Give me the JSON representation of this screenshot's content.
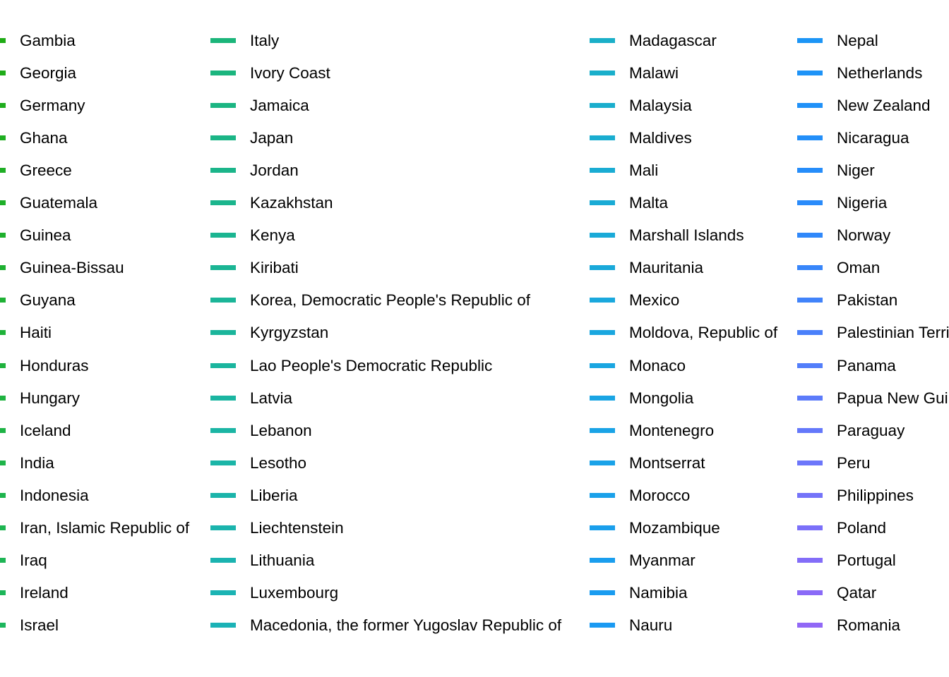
{
  "chart_data": {
    "type": "legend",
    "legend": {
      "columns": [
        {
          "entries": [
            {
              "name": "Gambia",
              "color": "#1fab15"
            },
            {
              "name": "Georgia",
              "color": "#1fac19"
            },
            {
              "name": "Germany",
              "color": "#1fad1d"
            },
            {
              "name": "Ghana",
              "color": "#1fae21"
            },
            {
              "name": "Greece",
              "color": "#1fae25"
            },
            {
              "name": "Guatemala",
              "color": "#1faf29"
            },
            {
              "name": "Guinea",
              "color": "#1fb02d"
            },
            {
              "name": "Guinea-Bissau",
              "color": "#1fb031"
            },
            {
              "name": "Guyana",
              "color": "#1fb135"
            },
            {
              "name": "Haiti",
              "color": "#1fb239"
            },
            {
              "name": "Honduras",
              "color": "#1fb23d"
            },
            {
              "name": "Hungary",
              "color": "#1fb341"
            },
            {
              "name": "Iceland",
              "color": "#1eb345"
            },
            {
              "name": "India",
              "color": "#1eb449"
            },
            {
              "name": "Indonesia",
              "color": "#1eb44d"
            },
            {
              "name": "Iran, Islamic Republic of",
              "color": "#1eb551"
            },
            {
              "name": "Iraq",
              "color": "#1eb555"
            },
            {
              "name": "Ireland",
              "color": "#1db659"
            },
            {
              "name": "Israel",
              "color": "#1db65d"
            }
          ]
        },
        {
          "entries": [
            {
              "name": "Italy",
              "color": "#1bb57a"
            },
            {
              "name": "Ivory Coast",
              "color": "#1bb57e"
            },
            {
              "name": "Jamaica",
              "color": "#1bb582"
            },
            {
              "name": "Japan",
              "color": "#1bb586"
            },
            {
              "name": "Jordan",
              "color": "#1bb58a"
            },
            {
              "name": "Kazakhstan",
              "color": "#1bb58d"
            },
            {
              "name": "Kenya",
              "color": "#1bb591"
            },
            {
              "name": "Kiribati",
              "color": "#1bb594"
            },
            {
              "name": "Korea, Democratic People's Republic of",
              "color": "#1bb598"
            },
            {
              "name": "Kyrgyzstan",
              "color": "#1bb59b"
            },
            {
              "name": "Lao People's Democratic Republic",
              "color": "#1bb59e"
            },
            {
              "name": "Latvia",
              "color": "#1bb5a1"
            },
            {
              "name": "Lebanon",
              "color": "#1bb5a4"
            },
            {
              "name": "Lesotho",
              "color": "#1bb5a7"
            },
            {
              "name": "Liberia",
              "color": "#1bb4aa"
            },
            {
              "name": "Liechtenstein",
              "color": "#1bb4ad"
            },
            {
              "name": "Lithuania",
              "color": "#1bb3b0"
            },
            {
              "name": "Luxembourg",
              "color": "#1bb3b3"
            },
            {
              "name": "Macedonia, the former Yugoslav Republic of",
              "color": "#1bb2b6"
            }
          ]
        },
        {
          "entries": [
            {
              "name": "Madagascar",
              "color": "#1aafc8"
            },
            {
              "name": "Malawi",
              "color": "#1aafcb"
            },
            {
              "name": "Malaysia",
              "color": "#1aaecd"
            },
            {
              "name": "Maldives",
              "color": "#1aadd0"
            },
            {
              "name": "Mali",
              "color": "#1aacd3"
            },
            {
              "name": "Malta",
              "color": "#1aabd5"
            },
            {
              "name": "Marshall Islands",
              "color": "#1aaad8"
            },
            {
              "name": "Mauritania",
              "color": "#1aa9da"
            },
            {
              "name": "Mexico",
              "color": "#1aa8dd"
            },
            {
              "name": "Moldova, Republic of",
              "color": "#1aa7df"
            },
            {
              "name": "Monaco",
              "color": "#1aa6e1"
            },
            {
              "name": "Mongolia",
              "color": "#1aa5e4"
            },
            {
              "name": "Montenegro",
              "color": "#1aa3e6"
            },
            {
              "name": "Montserrat",
              "color": "#1aa2e8"
            },
            {
              "name": "Morocco",
              "color": "#1aa1ea"
            },
            {
              "name": "Mozambique",
              "color": "#1a9fec"
            },
            {
              "name": "Myanmar",
              "color": "#1a9eee"
            },
            {
              "name": "Namibia",
              "color": "#1a9cf0"
            },
            {
              "name": "Nauru",
              "color": "#1a9af2"
            }
          ]
        },
        {
          "entries": [
            {
              "name": "Nepal",
              "color": "#1c95f6"
            },
            {
              "name": "Netherlands",
              "color": "#1e93f7"
            },
            {
              "name": "New Zealand",
              "color": "#2091f8"
            },
            {
              "name": "Nicaragua",
              "color": "#238ff9"
            },
            {
              "name": "Niger",
              "color": "#268dfa"
            },
            {
              "name": "Nigeria",
              "color": "#2a8bfa"
            },
            {
              "name": "Norway",
              "color": "#3088fa"
            },
            {
              "name": "Oman",
              "color": "#3886fa"
            },
            {
              "name": "Pakistan",
              "color": "#4183fa"
            },
            {
              "name": "Palestinian Territory, Occupied",
              "color": "#4a80fa"
            },
            {
              "name": "Panama",
              "color": "#537efa"
            },
            {
              "name": "Papua New Guinea",
              "color": "#5c7bfa"
            },
            {
              "name": "Paraguay",
              "color": "#6478fa"
            },
            {
              "name": "Peru",
              "color": "#6c76fa"
            },
            {
              "name": "Philippines",
              "color": "#7473f9"
            },
            {
              "name": "Poland",
              "color": "#7b70f9"
            },
            {
              "name": "Portugal",
              "color": "#836df8"
            },
            {
              "name": "Qatar",
              "color": "#8a6af7"
            },
            {
              "name": "Romania",
              "color": "#9168f6"
            }
          ]
        }
      ]
    }
  }
}
